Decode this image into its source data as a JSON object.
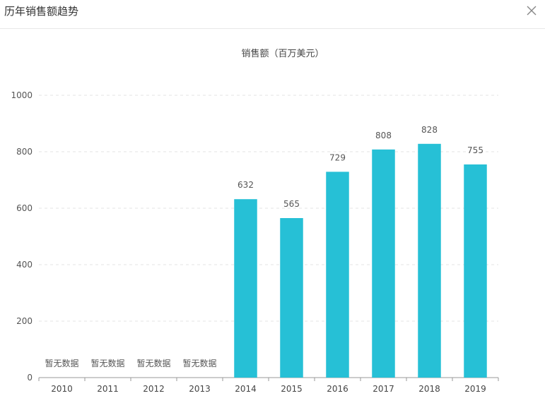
{
  "dialog": {
    "title": "历年销售额趋势",
    "close_icon": "close-icon"
  },
  "chart_data": {
    "type": "bar",
    "title": "销售额（百万美元）",
    "categories": [
      "2010",
      "2011",
      "2012",
      "2013",
      "2014",
      "2015",
      "2016",
      "2017",
      "2018",
      "2019"
    ],
    "values": [
      null,
      null,
      null,
      null,
      632,
      565,
      729,
      808,
      828,
      755
    ],
    "no_data_label": "暂无数据",
    "ylim": [
      0,
      1000
    ],
    "yticks": [
      0,
      200,
      400,
      600,
      800,
      1000
    ],
    "grid": true,
    "bar_color": "#26c0d6"
  }
}
